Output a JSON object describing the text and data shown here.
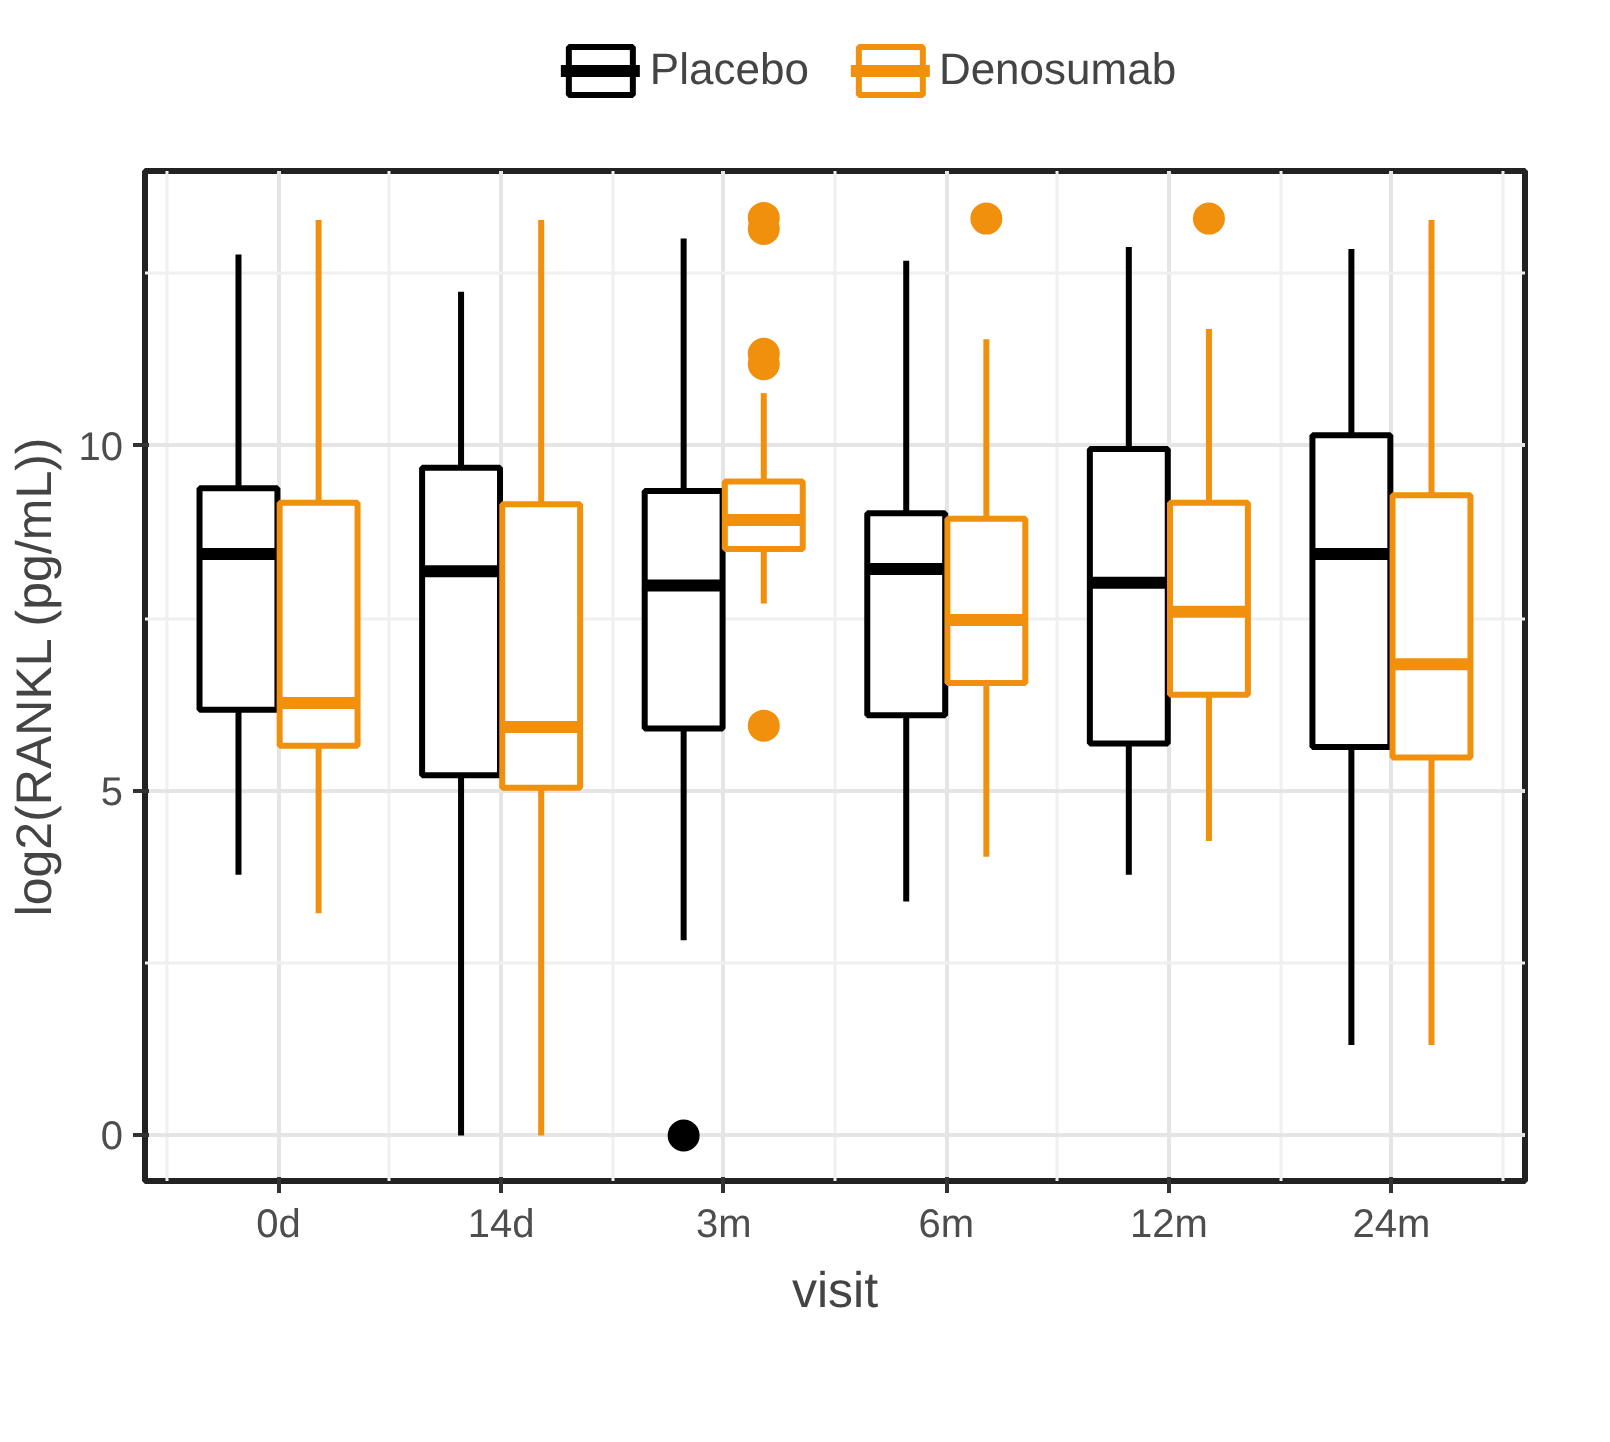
{
  "chart_data": {
    "type": "box",
    "xlabel": "visit",
    "ylabel": "log2(RANKL (pg/mL))",
    "categories": [
      "0d",
      "14d",
      "3m",
      "6m",
      "12m",
      "24m"
    ],
    "ylim": [
      -0.66,
      13.98
    ],
    "yticks": [
      0,
      5,
      10
    ],
    "grid": true,
    "legend": "top",
    "series": [
      {
        "name": "Placebo",
        "color": "#000000",
        "boxes": [
          {
            "low": 3.78,
            "q1": 6.17,
            "median": 8.43,
            "q3": 9.38,
            "high": 12.77
          },
          {
            "low": 0,
            "q1": 5.22,
            "median": 8.18,
            "q3": 9.68,
            "high": 12.23
          },
          {
            "low": 2.83,
            "q1": 5.9,
            "median": 7.97,
            "q3": 9.34,
            "high": 13.0,
            "outliers": [
              0
            ]
          },
          {
            "low": 3.39,
            "q1": 6.09,
            "median": 8.21,
            "q3": 9.02,
            "high": 12.68
          },
          {
            "low": 3.78,
            "q1": 5.68,
            "median": 8.01,
            "q3": 9.95,
            "high": 12.88
          },
          {
            "low": 1.31,
            "q1": 5.63,
            "median": 8.43,
            "q3": 10.15,
            "high": 12.85
          }
        ]
      },
      {
        "name": "Denosumab",
        "color": "#f0900c",
        "boxes": [
          {
            "low": 3.22,
            "q1": 5.65,
            "median": 6.27,
            "q3": 9.17,
            "high": 13.27
          },
          {
            "low": 0,
            "q1": 5.04,
            "median": 5.92,
            "q3": 9.15,
            "high": 13.27
          },
          {
            "low": 7.71,
            "q1": 8.5,
            "median": 8.92,
            "q3": 9.48,
            "high": 10.76,
            "outliers": [
              13.3,
              13.14,
              11.33,
              11.18,
              5.94
            ]
          },
          {
            "low": 4.04,
            "q1": 6.56,
            "median": 7.47,
            "q3": 8.94,
            "high": 11.54,
            "outliers": [
              13.29
            ]
          },
          {
            "low": 4.27,
            "q1": 6.39,
            "median": 7.59,
            "q3": 9.17,
            "high": 11.69,
            "outliers": [
              13.29
            ]
          },
          {
            "low": 1.31,
            "q1": 5.48,
            "median": 6.83,
            "q3": 9.28,
            "high": 13.27
          }
        ]
      }
    ]
  }
}
